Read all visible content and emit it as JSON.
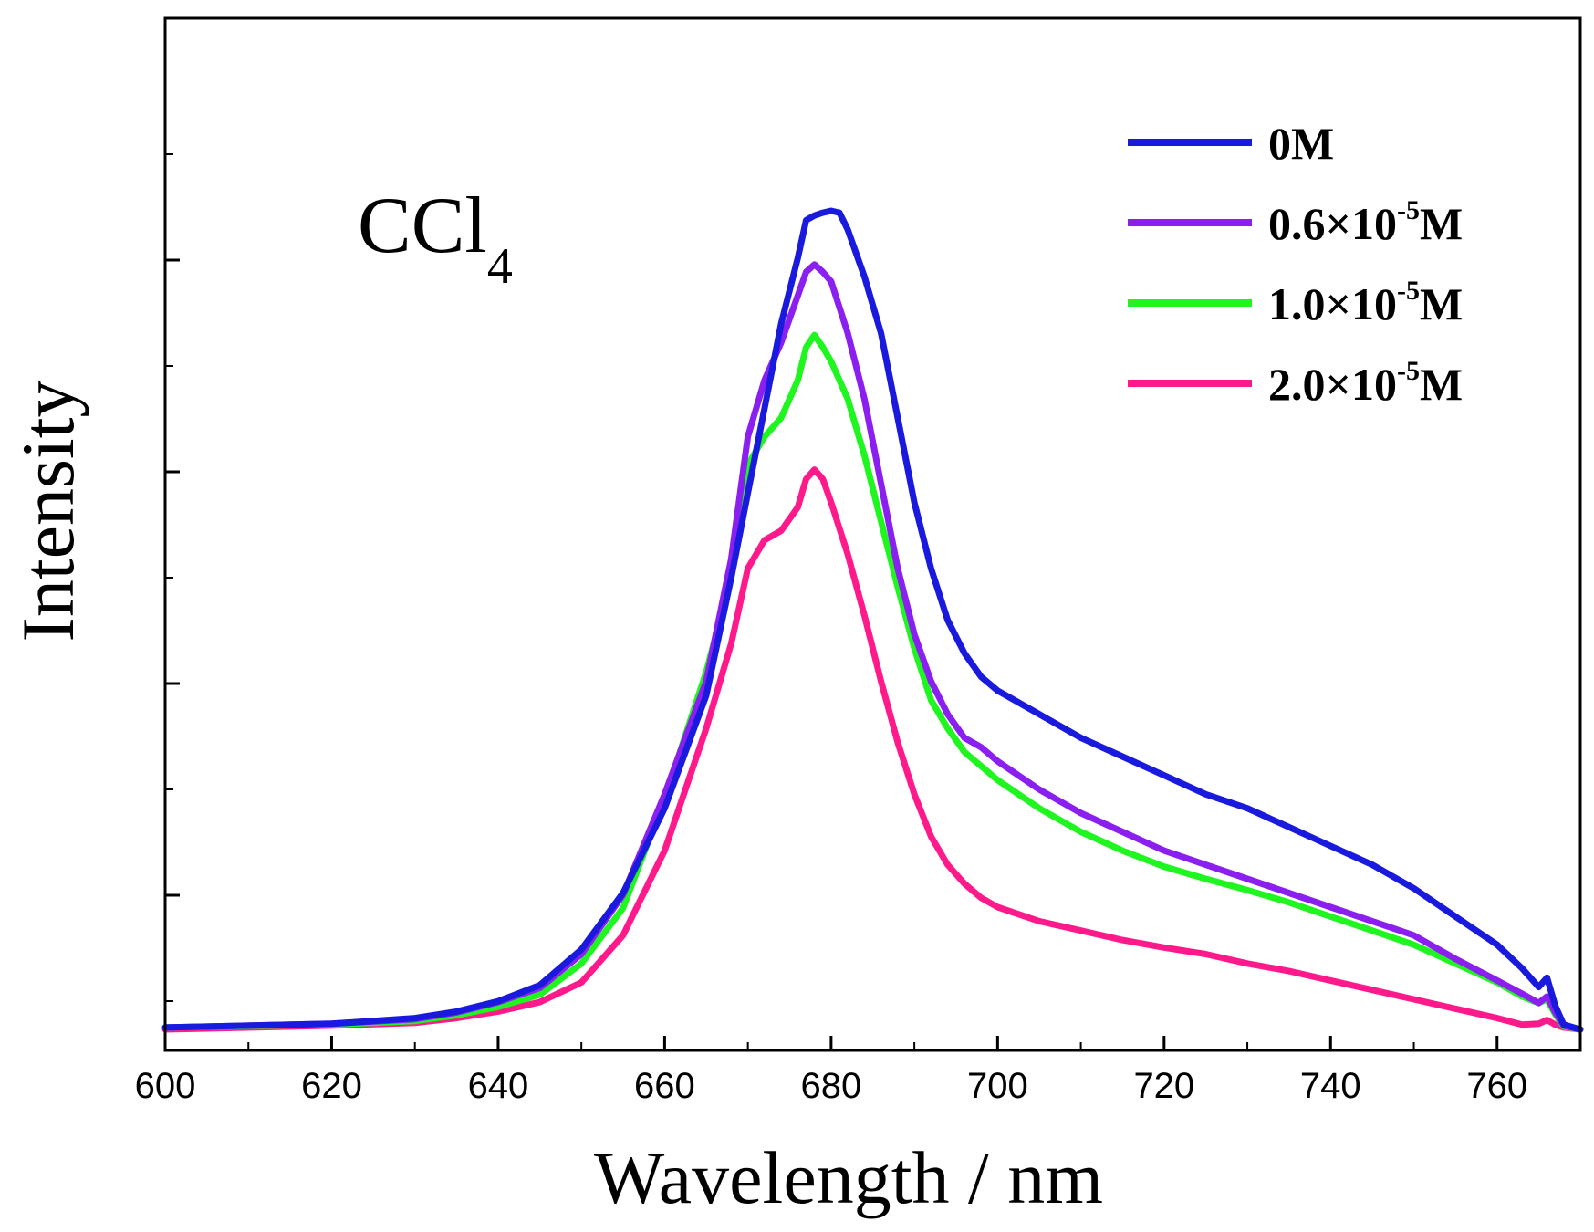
{
  "chart_data": {
    "type": "line",
    "xlabel": "Wavelength / nm",
    "ylabel": "Intensity",
    "xlim": [
      600,
      770
    ],
    "ylim": [
      0,
      100
    ],
    "xticks": [
      600,
      620,
      640,
      660,
      680,
      700,
      720,
      740,
      760
    ],
    "y_tick_labels_shown": false,
    "annotation": {
      "text": "CCl",
      "subscript": "4"
    },
    "legend_position": "top-right",
    "grid": false,
    "series": [
      {
        "name": "0M",
        "label_base": "0M",
        "label_exp": "",
        "label_unit": "",
        "color": "#1a1adf",
        "x": [
          600,
          620,
          630,
          635,
          640,
          645,
          650,
          655,
          660,
          665,
          668,
          670,
          672,
          674,
          676,
          677,
          678,
          679,
          680,
          681,
          682,
          684,
          686,
          688,
          690,
          692,
          694,
          696,
          698,
          700,
          705,
          710,
          715,
          720,
          725,
          730,
          735,
          740,
          745,
          750,
          755,
          760,
          763,
          765,
          766,
          767,
          768,
          770
        ],
        "y": [
          0.2,
          0.6,
          1.2,
          1.9,
          3.0,
          4.7,
          8.5,
          14.5,
          23.5,
          35.5,
          48,
          57,
          66,
          75,
          82,
          86,
          86.5,
          86.8,
          87,
          86.8,
          85,
          80,
          74,
          65,
          56,
          49,
          43.5,
          40,
          37.5,
          36,
          33.5,
          31,
          29,
          27,
          25,
          23.5,
          21.5,
          19.5,
          17.5,
          15,
          12,
          9,
          6.5,
          4.5,
          5.5,
          2.5,
          0.5,
          0
        ]
      },
      {
        "name": "0.6×10-5M",
        "label_base": "0.6×10",
        "label_exp": "-5",
        "label_unit": "M",
        "color": "#8a1ff0",
        "x": [
          600,
          620,
          630,
          635,
          640,
          645,
          650,
          655,
          660,
          665,
          668,
          670,
          672,
          674,
          676,
          677,
          678,
          679,
          680,
          682,
          684,
          686,
          688,
          690,
          692,
          694,
          696,
          698,
          700,
          705,
          710,
          715,
          720,
          725,
          730,
          735,
          740,
          745,
          750,
          755,
          760,
          763,
          765,
          766,
          767,
          768,
          770
        ],
        "y": [
          0.2,
          0.6,
          1.1,
          1.8,
          2.9,
          4.4,
          8.0,
          14.3,
          25,
          37,
          50,
          63,
          69,
          73,
          78,
          80.5,
          81.3,
          80.5,
          79.5,
          74,
          67,
          58,
          49,
          42,
          37,
          33.5,
          31,
          30,
          28.5,
          25.5,
          23,
          21,
          19,
          17.5,
          16,
          14.5,
          13,
          11.5,
          10,
          7.5,
          5.2,
          3.8,
          2.8,
          3.5,
          1.8,
          0.4,
          0
        ]
      },
      {
        "name": "1.0×10-5M",
        "label_base": "1.0×10",
        "label_exp": "-5",
        "label_unit": "M",
        "color": "#1ff51f",
        "x": [
          600,
          620,
          630,
          635,
          640,
          645,
          650,
          655,
          660,
          665,
          668,
          670,
          672,
          674,
          676,
          677,
          678,
          679,
          680,
          682,
          684,
          686,
          688,
          690,
          692,
          694,
          696,
          698,
          700,
          705,
          710,
          715,
          720,
          725,
          730,
          735,
          740,
          745,
          750,
          755,
          760,
          763,
          765,
          766,
          767,
          768,
          770
        ],
        "y": [
          0.2,
          0.5,
          0.9,
          1.5,
          2.4,
          3.7,
          7.0,
          12.9,
          24.5,
          38,
          48,
          60,
          63,
          65,
          69,
          72.5,
          73.8,
          72.5,
          71,
          67,
          61,
          54,
          47,
          40.5,
          35,
          32,
          29.5,
          28,
          26.5,
          23.5,
          21,
          19,
          17.3,
          16,
          14.8,
          13.5,
          12,
          10.5,
          9,
          7,
          5,
          3.5,
          2.8,
          3.2,
          1.6,
          0.3,
          0
        ]
      },
      {
        "name": "2.0×10-5M",
        "label_base": "2.0×10",
        "label_exp": "-5",
        "label_unit": "M",
        "color": "#ff1a8c",
        "x": [
          600,
          620,
          630,
          635,
          640,
          645,
          650,
          655,
          660,
          665,
          668,
          670,
          672,
          674,
          676,
          677,
          678,
          679,
          680,
          682,
          684,
          686,
          688,
          690,
          692,
          694,
          696,
          698,
          700,
          705,
          710,
          715,
          720,
          725,
          730,
          735,
          740,
          745,
          750,
          755,
          760,
          763,
          765,
          766,
          767,
          768,
          770
        ],
        "y": [
          0,
          0.4,
          0.7,
          1.2,
          1.9,
          2.9,
          5.0,
          10.0,
          19,
          32,
          41,
          49,
          52,
          53,
          55.5,
          58.5,
          59.5,
          58.5,
          56,
          50.5,
          44,
          37,
          30.5,
          25,
          20.5,
          17.5,
          15.5,
          14,
          13,
          11.5,
          10.5,
          9.5,
          8.7,
          8,
          7,
          6.2,
          5.2,
          4.2,
          3.2,
          2.2,
          1.2,
          0.5,
          0.6,
          1.0,
          0.5,
          0.2,
          0
        ]
      }
    ]
  }
}
